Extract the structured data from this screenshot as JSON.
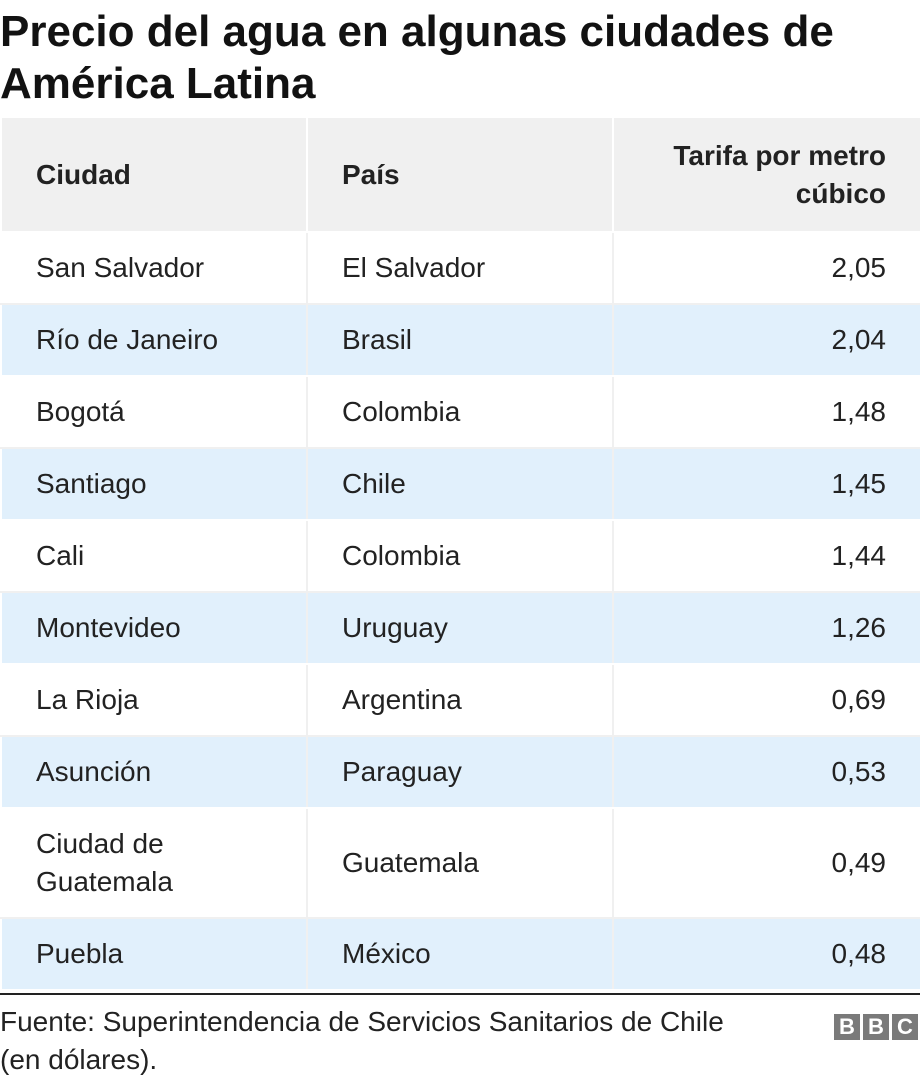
{
  "title": "Precio del agua en algunas ciudades de América Latina",
  "table": {
    "headers": [
      "Ciudad",
      "País",
      "Tarifa por metro cúbico"
    ],
    "rows": [
      [
        "San Salvador",
        "El Salvador",
        "2,05"
      ],
      [
        "Río de Janeiro",
        "Brasil",
        "2,04"
      ],
      [
        "Bogotá",
        "Colombia",
        "1,48"
      ],
      [
        "Santiago",
        "Chile",
        "1,45"
      ],
      [
        "Cali",
        "Colombia",
        "1,44"
      ],
      [
        "Montevideo",
        "Uruguay",
        "1,26"
      ],
      [
        "La Rioja",
        "Argentina",
        "0,69"
      ],
      [
        "Asunción",
        "Paraguay",
        "0,53"
      ],
      [
        "Ciudad de Guatemala",
        "Guatemala",
        "0,49"
      ],
      [
        "Puebla",
        "México",
        "0,48"
      ]
    ]
  },
  "source": "Fuente: Superintendencia de Servicios Sanitarios de Chile (en dólares).",
  "logo": {
    "letters": [
      "B",
      "B",
      "C"
    ]
  },
  "colors": {
    "header_bg": "#f0f0f0",
    "stripe_bg": "#e1f0fc",
    "logo_gray": "#7a7a7a"
  },
  "chart_data": {
    "type": "table",
    "title": "Precio del agua en algunas ciudades de América Latina",
    "columns": [
      "Ciudad",
      "País",
      "Tarifa por metro cúbico"
    ],
    "rows": [
      {
        "Ciudad": "San Salvador",
        "País": "El Salvador",
        "Tarifa por metro cúbico": 2.05
      },
      {
        "Ciudad": "Río de Janeiro",
        "País": "Brasil",
        "Tarifa por metro cúbico": 2.04
      },
      {
        "Ciudad": "Bogotá",
        "País": "Colombia",
        "Tarifa por metro cúbico": 1.48
      },
      {
        "Ciudad": "Santiago",
        "País": "Chile",
        "Tarifa por metro cúbico": 1.45
      },
      {
        "Ciudad": "Cali",
        "País": "Colombia",
        "Tarifa por metro cúbico": 1.44
      },
      {
        "Ciudad": "Montevideo",
        "País": "Uruguay",
        "Tarifa por metro cúbico": 1.26
      },
      {
        "Ciudad": "La Rioja",
        "País": "Argentina",
        "Tarifa por metro cúbico": 0.69
      },
      {
        "Ciudad": "Asunción",
        "País": "Paraguay",
        "Tarifa por metro cúbico": 0.53
      },
      {
        "Ciudad": "Ciudad de Guatemala",
        "País": "Guatemala",
        "Tarifa por metro cúbico": 0.49
      },
      {
        "Ciudad": "Puebla",
        "País": "México",
        "Tarifa por metro cúbico": 0.48
      }
    ]
  }
}
